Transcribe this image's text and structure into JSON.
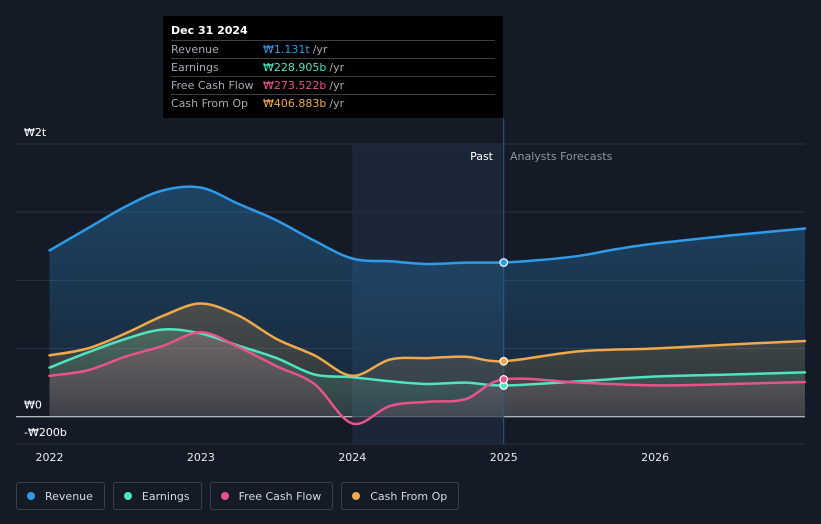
{
  "tooltip": {
    "date": "Dec 31 2024",
    "rows": [
      {
        "name": "Revenue",
        "value": "₩1.131t",
        "unit": "/yr",
        "color": "#2e9be8"
      },
      {
        "name": "Earnings",
        "value": "₩228.905b",
        "unit": "/yr",
        "color": "#4fe3c0"
      },
      {
        "name": "Free Cash Flow",
        "value": "₩273.522b",
        "unit": "/yr",
        "color": "#e8538a"
      },
      {
        "name": "Cash From Op",
        "value": "₩406.883b",
        "unit": "/yr",
        "color": "#efa84b"
      }
    ]
  },
  "labels": {
    "past": "Past",
    "forecast": "Analysts Forecasts"
  },
  "legend": [
    {
      "name": "Revenue",
      "color": "#2e9be8"
    },
    {
      "name": "Earnings",
      "color": "#4fe3c0"
    },
    {
      "name": "Free Cash Flow",
      "color": "#e8538a"
    },
    {
      "name": "Cash From Op",
      "color": "#efa84b"
    }
  ],
  "chart_data": {
    "type": "line",
    "title": "",
    "xlabel": "",
    "ylabel": "",
    "y_unit": "₩ billions",
    "ylim": [
      -200,
      2000
    ],
    "xlim": [
      2021.99,
      2026.99
    ],
    "y_tick_labels": [
      {
        "value": 2000,
        "label": "₩2t"
      },
      {
        "value": 0,
        "label": "₩0"
      },
      {
        "value": -200,
        "label": "-₩200b"
      }
    ],
    "x_ticks": [
      {
        "value": 2022,
        "label": "2022"
      },
      {
        "value": 2023,
        "label": "2023"
      },
      {
        "value": 2024,
        "label": "2024"
      },
      {
        "value": 2025,
        "label": "2025"
      },
      {
        "value": 2026,
        "label": "2026"
      }
    ],
    "past_forecast_split": 2025.0,
    "highlight_band": [
      2024.0,
      2025.0
    ],
    "series": [
      {
        "name": "Revenue",
        "color": "#2e9be8",
        "points": [
          [
            2022.0,
            1220
          ],
          [
            2022.25,
            1380
          ],
          [
            2022.5,
            1540
          ],
          [
            2022.75,
            1660
          ],
          [
            2023.0,
            1680
          ],
          [
            2023.25,
            1560
          ],
          [
            2023.5,
            1440
          ],
          [
            2023.75,
            1290
          ],
          [
            2024.0,
            1160
          ],
          [
            2024.25,
            1140
          ],
          [
            2024.5,
            1120
          ],
          [
            2024.75,
            1130
          ],
          [
            2025.0,
            1131
          ],
          [
            2025.25,
            1150
          ],
          [
            2025.5,
            1180
          ],
          [
            2025.75,
            1230
          ],
          [
            2026.0,
            1270
          ],
          [
            2026.5,
            1330
          ],
          [
            2026.99,
            1380
          ]
        ]
      },
      {
        "name": "Earnings",
        "color": "#4fe3c0",
        "points": [
          [
            2022.0,
            360
          ],
          [
            2022.25,
            470
          ],
          [
            2022.5,
            570
          ],
          [
            2022.75,
            640
          ],
          [
            2023.0,
            610
          ],
          [
            2023.25,
            520
          ],
          [
            2023.5,
            430
          ],
          [
            2023.75,
            310
          ],
          [
            2024.0,
            290
          ],
          [
            2024.25,
            260
          ],
          [
            2024.5,
            240
          ],
          [
            2024.75,
            250
          ],
          [
            2025.0,
            228.9
          ],
          [
            2025.5,
            260
          ],
          [
            2026.0,
            295
          ],
          [
            2026.5,
            310
          ],
          [
            2026.99,
            325
          ]
        ]
      },
      {
        "name": "Free Cash Flow",
        "color": "#e8538a",
        "points": [
          [
            2022.0,
            300
          ],
          [
            2022.25,
            340
          ],
          [
            2022.5,
            440
          ],
          [
            2022.75,
            520
          ],
          [
            2023.0,
            620
          ],
          [
            2023.25,
            510
          ],
          [
            2023.5,
            370
          ],
          [
            2023.75,
            240
          ],
          [
            2024.0,
            -50
          ],
          [
            2024.25,
            80
          ],
          [
            2024.5,
            110
          ],
          [
            2024.75,
            130
          ],
          [
            2025.0,
            273.5
          ],
          [
            2025.5,
            250
          ],
          [
            2026.0,
            230
          ],
          [
            2026.5,
            240
          ],
          [
            2026.99,
            255
          ]
        ]
      },
      {
        "name": "Cash From Op",
        "color": "#efa84b",
        "points": [
          [
            2022.0,
            450
          ],
          [
            2022.25,
            500
          ],
          [
            2022.5,
            610
          ],
          [
            2022.75,
            740
          ],
          [
            2023.0,
            830
          ],
          [
            2023.25,
            740
          ],
          [
            2023.5,
            570
          ],
          [
            2023.75,
            450
          ],
          [
            2024.0,
            300
          ],
          [
            2024.25,
            420
          ],
          [
            2024.5,
            430
          ],
          [
            2024.75,
            440
          ],
          [
            2025.0,
            406.9
          ],
          [
            2025.5,
            480
          ],
          [
            2026.0,
            500
          ],
          [
            2026.5,
            530
          ],
          [
            2026.99,
            555
          ]
        ]
      }
    ]
  }
}
